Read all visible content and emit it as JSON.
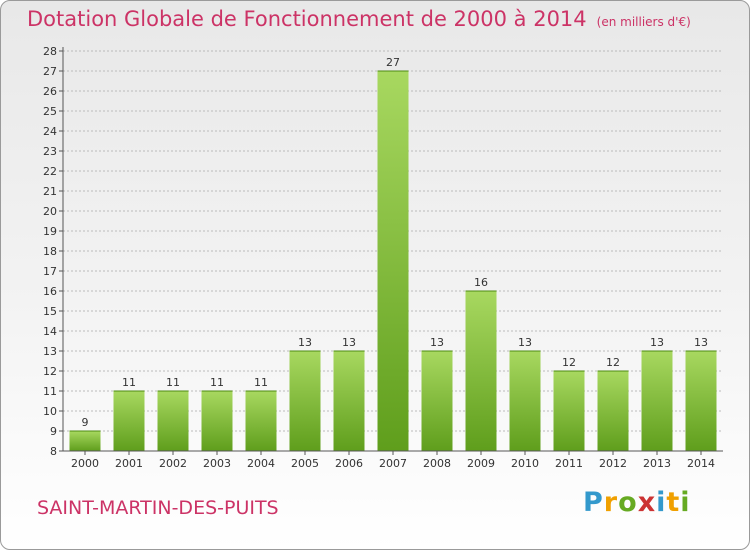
{
  "header": {
    "title": "Dotation Globale de Fonctionnement de 2000 à 2014",
    "unit": "(en milliers d'€)"
  },
  "footer": {
    "town": "SAINT-MARTIN-DES-PUITS",
    "logo_letters": [
      "P",
      "r",
      "o",
      "x",
      "i",
      "t",
      "i"
    ],
    "logo_colors": [
      "#3399cc",
      "#f0a000",
      "#66aa22",
      "#cc3333",
      "#3399cc",
      "#f0a000",
      "#66aa22"
    ]
  },
  "chart_data": {
    "type": "bar",
    "categories": [
      "2000",
      "2001",
      "2002",
      "2003",
      "2004",
      "2005",
      "2006",
      "2007",
      "2008",
      "2009",
      "2010",
      "2011",
      "2012",
      "2013",
      "2014"
    ],
    "values": [
      9,
      11,
      11,
      11,
      11,
      13,
      13,
      27,
      13,
      16,
      13,
      12,
      12,
      13,
      13
    ],
    "ylim": [
      8,
      28
    ],
    "yticks": [
      8,
      9,
      10,
      11,
      12,
      13,
      14,
      15,
      16,
      17,
      18,
      19,
      20,
      21,
      22,
      23,
      24,
      25,
      26,
      27,
      28
    ],
    "grid": true,
    "colors": {
      "bar_light": "#a8d860",
      "bar_dark": "#5f9e1c",
      "text": "#333333",
      "grid": "#bbbbbb"
    }
  }
}
